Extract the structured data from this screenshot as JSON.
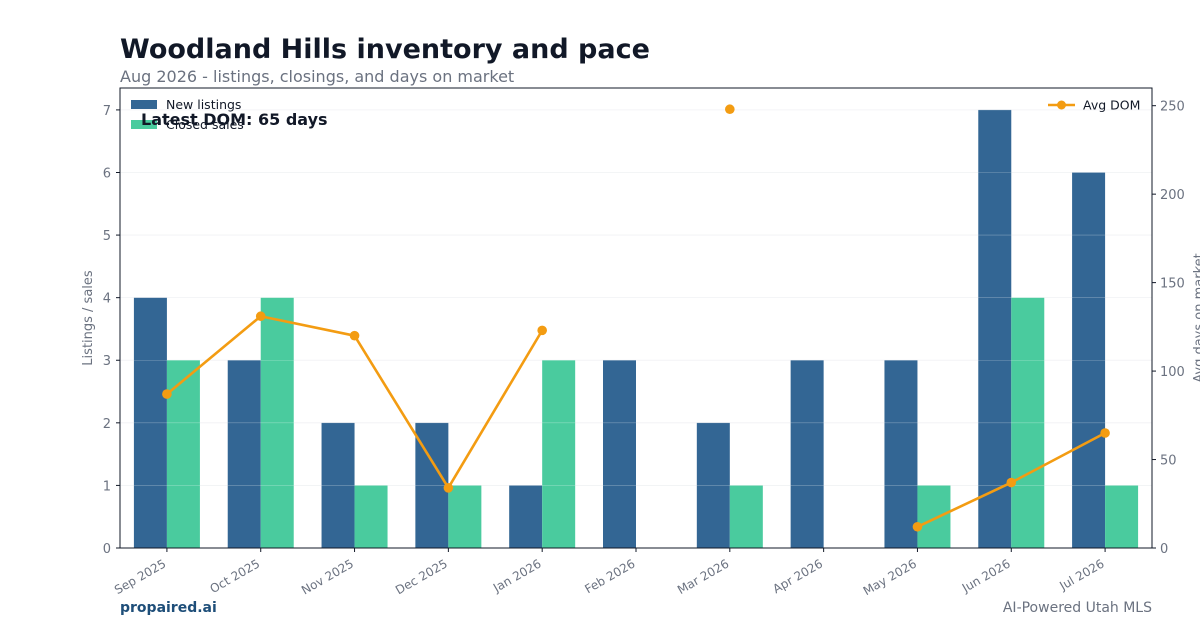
{
  "header": {
    "title": "Woodland Hills inventory and pace",
    "subtitle": "Aug 2026 - listings, closings, and days on market"
  },
  "footer": {
    "brand": "propaired.ai",
    "tagline": "AI-Powered Utah MLS"
  },
  "chart_data": {
    "type": "bar",
    "categories": [
      "Sep 2025",
      "Oct 2025",
      "Nov 2025",
      "Dec 2025",
      "Jan 2026",
      "Feb 2026",
      "Mar 2026",
      "Apr 2026",
      "May 2026",
      "Jun 2026",
      "Jul 2026"
    ],
    "series": [
      {
        "name": "New listings",
        "type": "bar",
        "axis": "left",
        "color": "#336694",
        "values": [
          4,
          3,
          2,
          2,
          1,
          3,
          2,
          3,
          3,
          7,
          6
        ]
      },
      {
        "name": "Closed sales",
        "type": "bar",
        "axis": "left",
        "color": "#4acb9e",
        "values": [
          3,
          4,
          1,
          1,
          3,
          0,
          1,
          0,
          1,
          4,
          1
        ]
      },
      {
        "name": "Avg DOM",
        "type": "line",
        "axis": "right",
        "color": "#f39c12",
        "values": [
          87,
          131,
          120,
          34,
          123,
          null,
          248,
          null,
          12,
          37,
          65
        ]
      }
    ],
    "ylabel": "Listings / sales",
    "y2label": "Avg days on market",
    "ylim": [
      0,
      7.35
    ],
    "y2lim": [
      0,
      260
    ],
    "yticks": [
      0,
      1,
      2,
      3,
      4,
      5,
      6,
      7
    ],
    "y2ticks": [
      0,
      50,
      100,
      150,
      200,
      250
    ],
    "grid": true,
    "legend_left": "top-left",
    "legend_right": "top-right",
    "annotation": "Latest DOM: 65 days"
  }
}
